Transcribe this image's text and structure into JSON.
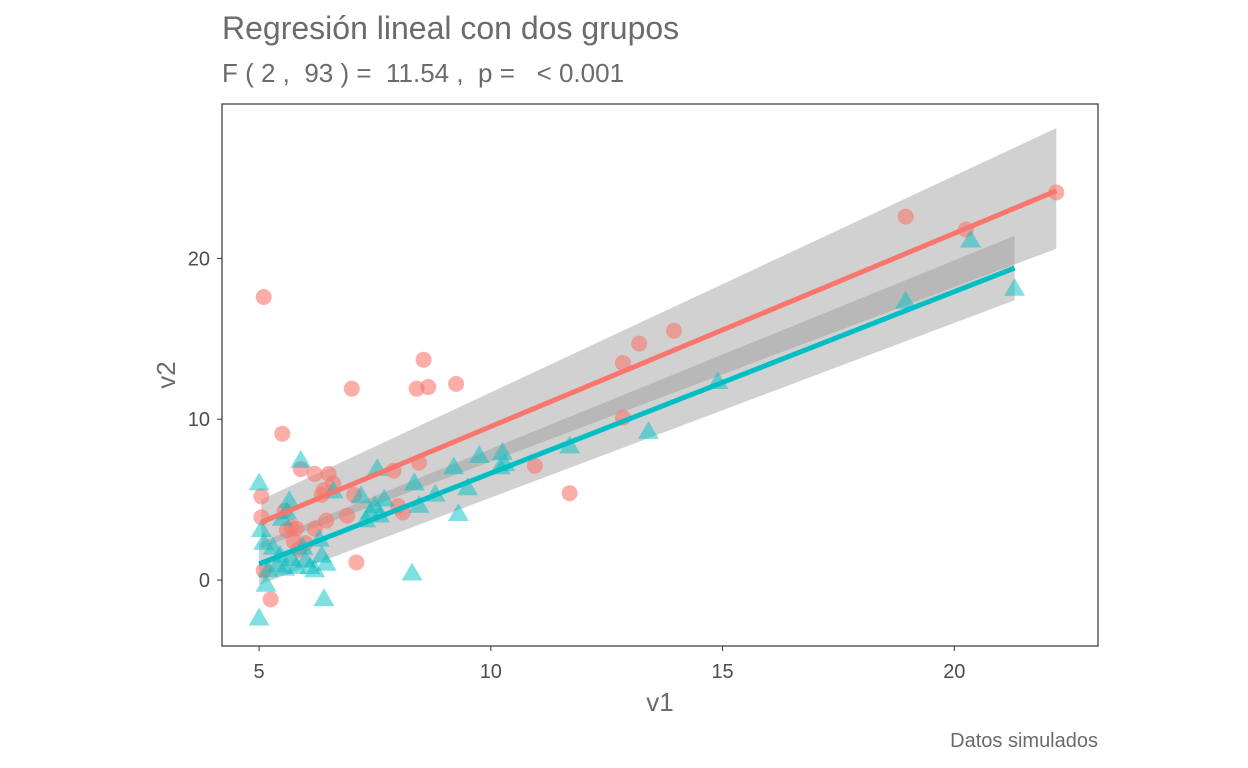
{
  "chart_data": {
    "type": "scatter",
    "title": "Regresión lineal con dos grupos",
    "subtitle": "F ( 2 ,  93 ) =  11.54 ,  p =   < 0.001",
    "caption": "Datos simulados",
    "xlabel": "v1",
    "ylabel": "v2",
    "xlim": [
      4.2,
      23.1
    ],
    "ylim": [
      -4.1,
      29.6
    ],
    "x_ticks": [
      5,
      10,
      15,
      20
    ],
    "y_ticks": [
      0,
      10,
      20
    ],
    "grid": false,
    "legend": "none",
    "colors": {
      "group1": "#F8766D",
      "group2": "#00BFC4",
      "band": "#999999"
    },
    "series": [
      {
        "marker": "circle",
        "color": "#F8766D",
        "points": [
          [
            5.1,
            17.6
          ],
          [
            5.05,
            5.2
          ],
          [
            5.05,
            3.9
          ],
          [
            5.1,
            0.6
          ],
          [
            5.25,
            -1.2
          ],
          [
            5.5,
            9.1
          ],
          [
            5.55,
            4.3
          ],
          [
            5.6,
            3.1
          ],
          [
            5.7,
            3.3
          ],
          [
            5.75,
            2.4
          ],
          [
            5.8,
            3.2
          ],
          [
            5.85,
            1.9
          ],
          [
            5.9,
            6.9
          ],
          [
            6.0,
            2.3
          ],
          [
            6.2,
            6.6
          ],
          [
            6.2,
            3.2
          ],
          [
            6.35,
            5.3
          ],
          [
            6.4,
            5.6
          ],
          [
            6.45,
            3.7
          ],
          [
            6.5,
            6.6
          ],
          [
            6.6,
            6.0
          ],
          [
            6.9,
            4.0
          ],
          [
            7.0,
            11.9
          ],
          [
            7.05,
            5.3
          ],
          [
            7.1,
            1.1
          ],
          [
            7.9,
            6.8
          ],
          [
            8.0,
            4.6
          ],
          [
            8.1,
            4.2
          ],
          [
            8.4,
            11.9
          ],
          [
            8.45,
            7.3
          ],
          [
            8.55,
            13.7
          ],
          [
            8.65,
            12.0
          ],
          [
            9.25,
            12.2
          ],
          [
            10.95,
            7.1
          ],
          [
            11.7,
            5.4
          ],
          [
            12.85,
            13.5
          ],
          [
            12.85,
            10.1
          ],
          [
            13.2,
            14.7
          ],
          [
            13.95,
            15.5
          ],
          [
            18.95,
            22.6
          ],
          [
            20.25,
            21.8
          ],
          [
            22.2,
            24.1
          ]
        ]
      },
      {
        "marker": "triangle",
        "color": "#00BFC4",
        "points": [
          [
            5.0,
            6.0
          ],
          [
            5.0,
            -2.4
          ],
          [
            5.05,
            3.1
          ],
          [
            5.1,
            2.3
          ],
          [
            5.15,
            -0.3
          ],
          [
            5.2,
            0.6
          ],
          [
            5.3,
            2.0
          ],
          [
            5.4,
            0.9
          ],
          [
            5.45,
            1.5
          ],
          [
            5.5,
            3.8
          ],
          [
            5.55,
            0.7
          ],
          [
            5.6,
            4.2
          ],
          [
            5.65,
            4.9
          ],
          [
            5.7,
            1.3
          ],
          [
            5.8,
            0.8
          ],
          [
            5.9,
            7.4
          ],
          [
            5.95,
            2.0
          ],
          [
            6.0,
            1.2
          ],
          [
            6.1,
            0.8
          ],
          [
            6.2,
            0.6
          ],
          [
            6.3,
            2.5
          ],
          [
            6.35,
            1.5
          ],
          [
            6.4,
            -1.2
          ],
          [
            6.45,
            1.0
          ],
          [
            6.6,
            5.5
          ],
          [
            7.2,
            5.2
          ],
          [
            7.3,
            3.7
          ],
          [
            7.4,
            4.2
          ],
          [
            7.5,
            4.6
          ],
          [
            7.55,
            6.9
          ],
          [
            7.6,
            4.0
          ],
          [
            7.7,
            5.0
          ],
          [
            8.3,
            0.4
          ],
          [
            8.35,
            6.0
          ],
          [
            8.45,
            4.6
          ],
          [
            8.8,
            5.3
          ],
          [
            9.2,
            7.0
          ],
          [
            9.3,
            4.1
          ],
          [
            9.5,
            5.7
          ],
          [
            9.75,
            7.7
          ],
          [
            10.2,
            7.0
          ],
          [
            10.25,
            7.9
          ],
          [
            10.3,
            7.2
          ],
          [
            11.7,
            8.3
          ],
          [
            13.4,
            9.2
          ],
          [
            14.9,
            12.3
          ],
          [
            18.95,
            17.3
          ],
          [
            20.35,
            21.1
          ],
          [
            21.3,
            18.1
          ]
        ]
      }
    ],
    "fits": [
      {
        "color": "#F8766D",
        "x": [
          5.05,
          22.2
        ],
        "y": [
          3.6,
          24.2
        ],
        "ci_upper": [
          5.0,
          28.1
        ],
        "ci_lower": [
          2.0,
          20.6
        ]
      },
      {
        "color": "#00BFC4",
        "x": [
          5.0,
          21.3
        ],
        "y": [
          1.0,
          19.4
        ],
        "ci_upper": [
          2.3,
          21.4
        ],
        "ci_lower": [
          -0.3,
          17.4
        ]
      }
    ]
  }
}
